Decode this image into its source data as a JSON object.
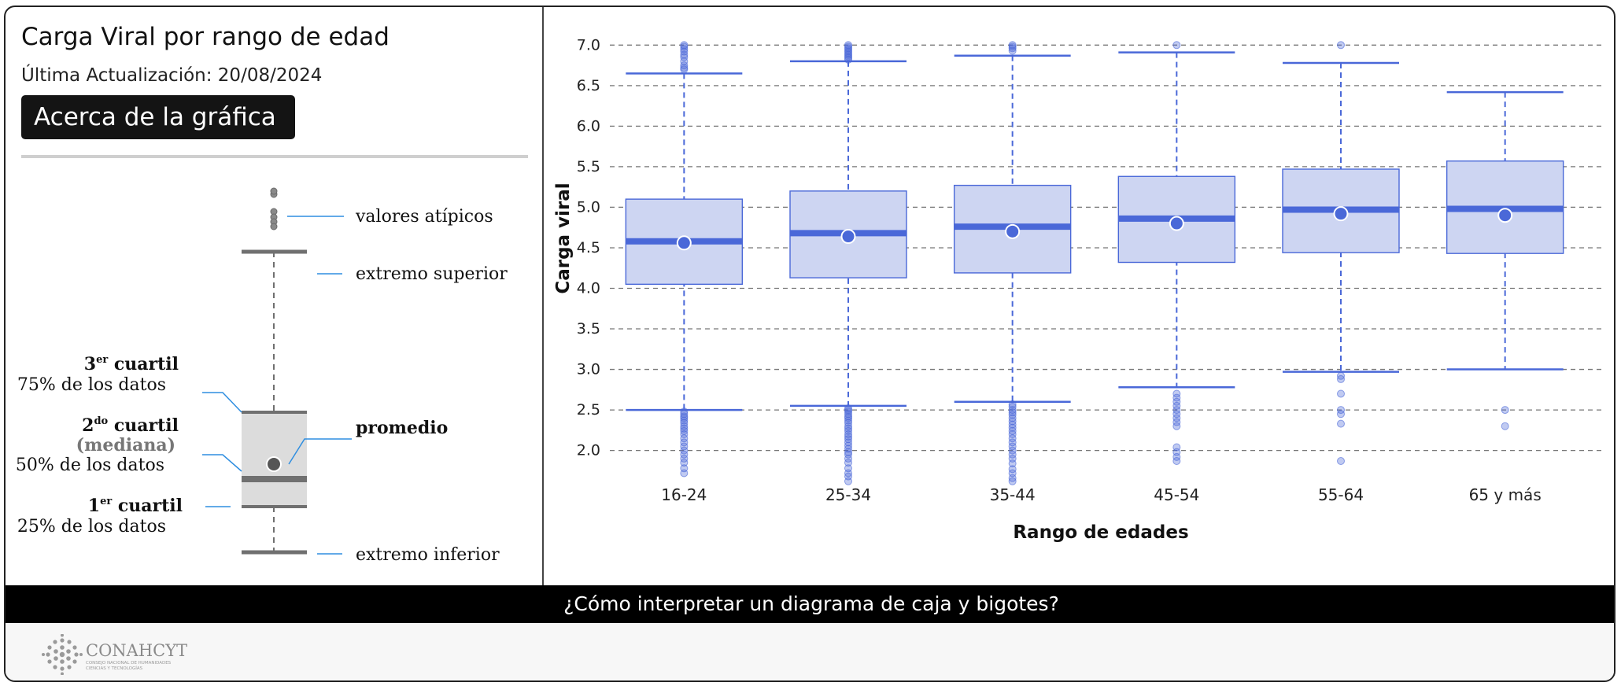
{
  "header": {
    "title": "Carga Viral por rango de edad",
    "updated": "Última Actualización: 20/08/2024",
    "about_button": "Acerca de la gráfica"
  },
  "guide": {
    "outliers": "valores atípicos",
    "upper_whisker": "extremo superior",
    "q3_title": "3",
    "q3_sup": "er",
    "q3_word": " cuartil",
    "q3_desc": "75% de los datos",
    "q2_title": "2",
    "q2_sup": "do",
    "q2_word": " cuartil",
    "q2_median": "(mediana)",
    "q2_desc": "50% de los datos",
    "mean": "promedio",
    "q1_title": "1",
    "q1_sup": "er",
    "q1_word": " cuartil",
    "q1_desc": "25% de los datos",
    "lower_whisker": "extremo inferior"
  },
  "banner": {
    "label": "¿Cómo interpretar un diagrama de caja y bigotes?"
  },
  "footer": {
    "logo_text": "CONAHCYT",
    "logo_sub1": "CONSEJO NACIONAL DE HUMANIDADES",
    "logo_sub2": "CIENCIAS Y TECNOLOGÍAS"
  },
  "colors": {
    "accent": "#4a68d8",
    "box_fill": "#cdd5f2",
    "grid": "#777777",
    "guide_gray": "#707070",
    "guide_line": "#2f8ee0"
  },
  "chart_data": {
    "type": "box",
    "xlabel": "Rango de edades",
    "ylabel": "Carga viral",
    "ylim": [
      1.55,
      7.1
    ],
    "yticks": [
      "7.0",
      "6.5",
      "6.0",
      "5.5",
      "5.0",
      "4.5",
      "4.0",
      "3.5",
      "3.0",
      "2.5",
      "2.0"
    ],
    "grid": true,
    "categories": [
      "16-24",
      "25-34",
      "35-44",
      "45-54",
      "55-64",
      "65 y más"
    ],
    "boxes": [
      {
        "category": "16-24",
        "whisker_low": 2.5,
        "q1": 4.05,
        "median": 4.58,
        "q3": 5.1,
        "whisker_high": 6.65,
        "mean": 4.56,
        "outliers": [
          7.0,
          6.98,
          6.95,
          6.92,
          6.88,
          6.85,
          6.8,
          6.75,
          6.72,
          6.7,
          2.48,
          2.45,
          2.42,
          2.4,
          2.37,
          2.34,
          2.3,
          2.27,
          2.24,
          2.2,
          2.15,
          2.1,
          2.05,
          2.0,
          1.95,
          1.9,
          1.85,
          1.78,
          1.72
        ]
      },
      {
        "category": "25-34",
        "whisker_low": 2.55,
        "q1": 4.13,
        "median": 4.68,
        "q3": 5.2,
        "whisker_high": 6.8,
        "mean": 4.64,
        "outliers": [
          7.0,
          6.98,
          6.96,
          6.94,
          6.92,
          6.9,
          6.88,
          6.86,
          6.84,
          6.82,
          2.52,
          2.5,
          2.48,
          2.45,
          2.42,
          2.4,
          2.37,
          2.34,
          2.3,
          2.27,
          2.24,
          2.2,
          2.17,
          2.14,
          2.1,
          2.06,
          2.02,
          1.98,
          1.95,
          1.9,
          1.85,
          1.78,
          1.72,
          1.68,
          1.62
        ]
      },
      {
        "category": "35-44",
        "whisker_low": 2.6,
        "q1": 4.19,
        "median": 4.76,
        "q3": 5.27,
        "whisker_high": 6.87,
        "mean": 4.7,
        "outliers": [
          7.0,
          6.98,
          6.96,
          6.93,
          2.57,
          2.54,
          2.5,
          2.47,
          2.44,
          2.4,
          2.36,
          2.32,
          2.28,
          2.24,
          2.2,
          2.15,
          2.1,
          2.05,
          2.0,
          1.95,
          1.9,
          1.84,
          1.77,
          1.72,
          1.66,
          1.62
        ]
      },
      {
        "category": "45-54",
        "whisker_low": 2.78,
        "q1": 4.32,
        "median": 4.86,
        "q3": 5.38,
        "whisker_high": 6.91,
        "mean": 4.8,
        "outliers": [
          7.0,
          2.7,
          2.65,
          2.6,
          2.55,
          2.5,
          2.45,
          2.4,
          2.35,
          2.3,
          2.04,
          1.98,
          1.92,
          1.87
        ]
      },
      {
        "category": "55-64",
        "whisker_low": 2.97,
        "q1": 4.44,
        "median": 4.97,
        "q3": 5.47,
        "whisker_high": 6.78,
        "mean": 4.92,
        "outliers": [
          7.0,
          2.92,
          2.88,
          2.7,
          2.5,
          2.45,
          2.33,
          1.87
        ]
      },
      {
        "category": "65 y más",
        "whisker_low": 3.0,
        "q1": 4.43,
        "median": 4.98,
        "q3": 5.57,
        "whisker_high": 6.42,
        "mean": 4.9,
        "outliers": [
          2.5,
          2.3
        ]
      }
    ]
  }
}
